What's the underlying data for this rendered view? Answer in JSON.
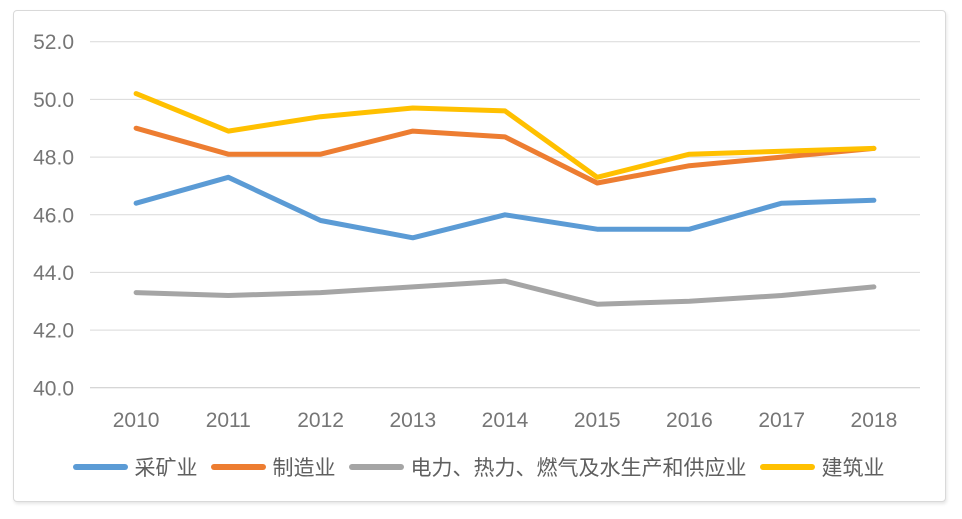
{
  "chart_data": {
    "type": "line",
    "title": "",
    "xlabel": "",
    "ylabel": "",
    "x_labels": [
      "2010",
      "2011",
      "2012",
      "2013",
      "2014",
      "2015",
      "2016",
      "2017",
      "2018"
    ],
    "series": [
      {
        "id": "mining",
        "name": "采矿业",
        "color": "#5B9BD5",
        "values": [
          46.4,
          47.3,
          45.8,
          45.2,
          46.0,
          45.5,
          45.5,
          46.4,
          46.5
        ]
      },
      {
        "id": "manufacturing",
        "name": "制造业",
        "color": "#ED7D31",
        "values": [
          49.0,
          48.1,
          48.1,
          48.9,
          48.7,
          47.1,
          47.7,
          48.0,
          48.3
        ]
      },
      {
        "id": "utilities",
        "name": "电力、热力、燃气及水生产和供应业",
        "color": "#A5A5A5",
        "values": [
          43.3,
          43.2,
          43.3,
          43.5,
          43.7,
          42.9,
          43.0,
          43.2,
          43.5
        ]
      },
      {
        "id": "construction",
        "name": "建筑业",
        "color": "#FFC000",
        "values": [
          50.2,
          48.9,
          49.4,
          49.7,
          49.6,
          47.3,
          48.1,
          48.2,
          48.3
        ]
      }
    ],
    "ylim": [
      40.0,
      52.0
    ],
    "ytick_step": 2.0,
    "ytick_labels": [
      "40.0",
      "42.0",
      "44.0",
      "46.0",
      "48.0",
      "50.0",
      "52.0"
    ],
    "grid": true,
    "legend_position": "bottom"
  },
  "style": {
    "background": "#FFFFFF",
    "card_border": "#D9D9D9",
    "gridline_color": "#D9D9D9",
    "axis_line_color": "#C9C9C9",
    "tick_label_color": "#767676",
    "legend_text_color": "#5F5F5F",
    "line_width": 5
  }
}
